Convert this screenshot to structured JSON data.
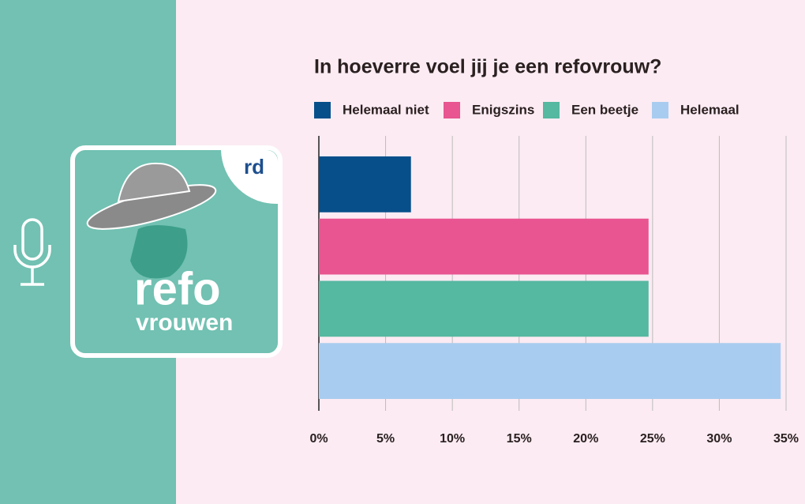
{
  "logo": {
    "badge": "rd",
    "title": "refo",
    "subtitle": "vrouwen"
  },
  "chart_data": {
    "type": "bar",
    "orientation": "horizontal",
    "title": "In hoeverre voel jij je een refovrouw?",
    "categories": [
      null
    ],
    "series": [
      {
        "name": "Helemaal niet",
        "color": "#064f8a",
        "values": [
          6.9
        ]
      },
      {
        "name": "Enigszins",
        "color": "#e85590",
        "values": [
          24.7
        ]
      },
      {
        "name": "Een beetje",
        "color": "#55b8a0",
        "values": [
          24.7
        ]
      },
      {
        "name": "Helemaal",
        "color": "#a8ccf0",
        "values": [
          34.6
        ]
      }
    ],
    "xlim": [
      0,
      35
    ],
    "xticks": [
      {
        "value": 0,
        "label": "0%"
      },
      {
        "value": 5,
        "label": "5%"
      },
      {
        "value": 10,
        "label": "10%"
      },
      {
        "value": 15,
        "label": "15%"
      },
      {
        "value": 20,
        "label": "20%"
      },
      {
        "value": 25,
        "label": "25%"
      },
      {
        "value": 30,
        "label": "30%"
      },
      {
        "value": 35,
        "label": "35%"
      }
    ],
    "grid": true,
    "legend": "top"
  }
}
